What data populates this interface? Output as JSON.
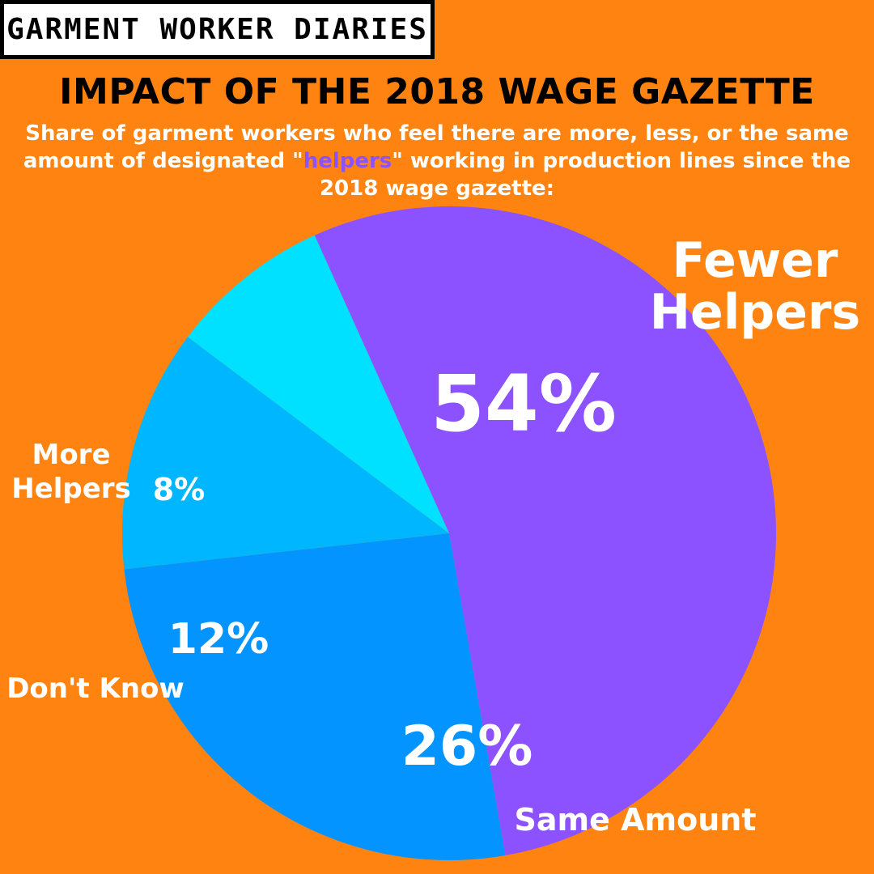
{
  "brand": "GARMENT WORKER DIARIES",
  "title": "IMPACT OF THE 2018 WAGE GAZETTE",
  "subtitle": {
    "before": "Share of garment workers who feel there are more, less, or the same amount of designated \"",
    "highlight": "helpers",
    "after": "\" working in production lines since the 2018 wage gazette:"
  },
  "colors": {
    "background": "#FF8311",
    "highlight": "#8C52FF"
  },
  "chart_data": {
    "type": "pie",
    "slices": [
      {
        "label": "Fewer Helpers",
        "value": 54,
        "value_label": "54%",
        "color": "#8C52FF"
      },
      {
        "label": "Same Amount",
        "value": 26,
        "value_label": "26%",
        "color": "#0494FF"
      },
      {
        "label": "Don't Know",
        "value": 12,
        "value_label": "12%",
        "color": "#00B6FF"
      },
      {
        "label": "More Helpers",
        "value": 8,
        "value_label": "8%",
        "color": "#00E0FF"
      }
    ]
  }
}
